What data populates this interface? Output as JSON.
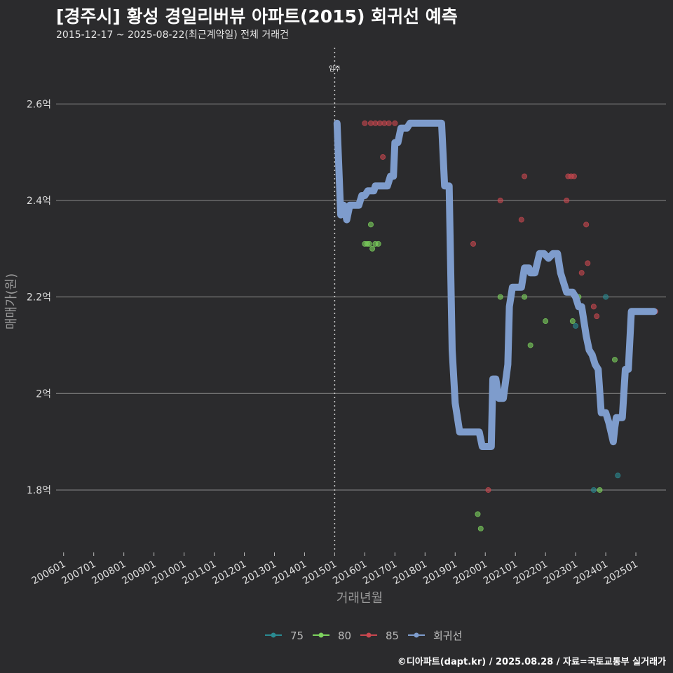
{
  "header": {
    "title": "[경주시] 황성 경일리버뷰 아파트(2015) 회귀선 예측",
    "subtitle": "2015-12-17 ~ 2025-08-22(최근계약일) 전체 거래건"
  },
  "footer": {
    "credit": "©디아파트(dapt.kr) / 2025.08.28 / 자료=국토교통부 실거래가"
  },
  "colors": {
    "background": "#2b2b2d",
    "s75": "#2a8a91",
    "s80": "#7dd35e",
    "s85": "#c9474f",
    "regression": "#7e9ccc",
    "grid": "#8a8a8a"
  },
  "chart_data": {
    "type": "scatter",
    "title": "[경주시] 황성 경일리버뷰 아파트(2015) 회귀선 예측",
    "xlabel": "거래년월",
    "ylabel": "매매가(원)",
    "x_ticks": [
      "200601",
      "200701",
      "200801",
      "200901",
      "201001",
      "201101",
      "201201",
      "201301",
      "201401",
      "201501",
      "201601",
      "201701",
      "201801",
      "201901",
      "202001",
      "202101",
      "202201",
      "202301",
      "202401",
      "202501"
    ],
    "x_range": [
      2005.75,
      2026.0
    ],
    "y_ticks": [
      1.8,
      2.0,
      2.2,
      2.4,
      2.6
    ],
    "y_tick_labels": [
      "1.8억",
      "2억",
      "2.2억",
      "2.4억",
      "2.6억"
    ],
    "ylim": [
      1.675,
      2.75
    ],
    "vline": {
      "x": 2015.0,
      "label": "입주"
    },
    "legend": [
      "75",
      "80",
      "85",
      "회귀선"
    ],
    "legend_position": "bottom",
    "series": [
      {
        "name": "75",
        "points": [
          [
            2024.0,
            2.2
          ],
          [
            2023.0,
            2.14
          ],
          [
            2023.6,
            1.8
          ],
          [
            2024.4,
            1.83
          ]
        ]
      },
      {
        "name": "80",
        "points": [
          [
            2016.0,
            2.31
          ],
          [
            2016.08,
            2.31
          ],
          [
            2016.15,
            2.31
          ],
          [
            2016.2,
            2.35
          ],
          [
            2016.25,
            2.3
          ],
          [
            2016.35,
            2.31
          ],
          [
            2016.45,
            2.31
          ],
          [
            2019.75,
            1.75
          ],
          [
            2019.85,
            1.72
          ],
          [
            2020.5,
            2.2
          ],
          [
            2021.3,
            2.2
          ],
          [
            2021.5,
            2.1
          ],
          [
            2022.0,
            2.15
          ],
          [
            2022.9,
            2.15
          ],
          [
            2023.1,
            2.2
          ],
          [
            2023.8,
            1.8
          ],
          [
            2024.3,
            2.07
          ]
        ]
      },
      {
        "name": "85",
        "points": [
          [
            2016.0,
            2.56
          ],
          [
            2016.2,
            2.56
          ],
          [
            2016.35,
            2.56
          ],
          [
            2016.5,
            2.56
          ],
          [
            2016.65,
            2.56
          ],
          [
            2016.8,
            2.56
          ],
          [
            2017.0,
            2.56
          ],
          [
            2016.6,
            2.49
          ],
          [
            2019.6,
            2.31
          ],
          [
            2020.1,
            1.8
          ],
          [
            2020.5,
            2.4
          ],
          [
            2021.2,
            2.36
          ],
          [
            2021.3,
            2.45
          ],
          [
            2022.7,
            2.4
          ],
          [
            2022.75,
            2.45
          ],
          [
            2022.85,
            2.45
          ],
          [
            2022.95,
            2.45
          ],
          [
            2023.2,
            2.25
          ],
          [
            2023.35,
            2.35
          ],
          [
            2023.4,
            2.27
          ],
          [
            2023.6,
            2.18
          ],
          [
            2023.7,
            2.16
          ],
          [
            2025.6,
            2.17
          ],
          [
            2025.65,
            2.17
          ]
        ]
      }
    ],
    "regression": [
      [
        2015.08,
        2.56
      ],
      [
        2015.2,
        2.37
      ],
      [
        2015.3,
        2.39
      ],
      [
        2015.4,
        2.36
      ],
      [
        2015.5,
        2.39
      ],
      [
        2015.8,
        2.39
      ],
      [
        2015.9,
        2.41
      ],
      [
        2016.0,
        2.41
      ],
      [
        2016.1,
        2.42
      ],
      [
        2016.3,
        2.42
      ],
      [
        2016.35,
        2.43
      ],
      [
        2016.75,
        2.43
      ],
      [
        2016.85,
        2.45
      ],
      [
        2016.95,
        2.45
      ],
      [
        2017.0,
        2.52
      ],
      [
        2017.1,
        2.52
      ],
      [
        2017.2,
        2.55
      ],
      [
        2017.4,
        2.55
      ],
      [
        2017.5,
        2.56
      ],
      [
        2018.55,
        2.56
      ],
      [
        2018.65,
        2.43
      ],
      [
        2018.8,
        2.43
      ],
      [
        2018.9,
        2.09
      ],
      [
        2019.0,
        1.98
      ],
      [
        2019.15,
        1.92
      ],
      [
        2019.8,
        1.92
      ],
      [
        2019.9,
        1.89
      ],
      [
        2020.2,
        1.89
      ],
      [
        2020.25,
        2.03
      ],
      [
        2020.35,
        2.03
      ],
      [
        2020.45,
        1.99
      ],
      [
        2020.6,
        1.99
      ],
      [
        2020.75,
        2.06
      ],
      [
        2020.8,
        2.18
      ],
      [
        2020.9,
        2.22
      ],
      [
        2021.2,
        2.22
      ],
      [
        2021.3,
        2.26
      ],
      [
        2021.45,
        2.26
      ],
      [
        2021.5,
        2.25
      ],
      [
        2021.65,
        2.25
      ],
      [
        2021.8,
        2.29
      ],
      [
        2021.95,
        2.29
      ],
      [
        2022.1,
        2.28
      ],
      [
        2022.25,
        2.29
      ],
      [
        2022.4,
        2.29
      ],
      [
        2022.5,
        2.25
      ],
      [
        2022.6,
        2.23
      ],
      [
        2022.7,
        2.21
      ],
      [
        2022.9,
        2.21
      ],
      [
        2023.0,
        2.2
      ],
      [
        2023.1,
        2.18
      ],
      [
        2023.2,
        2.18
      ],
      [
        2023.35,
        2.12
      ],
      [
        2023.45,
        2.09
      ],
      [
        2023.55,
        2.08
      ],
      [
        2023.65,
        2.06
      ],
      [
        2023.75,
        2.05
      ],
      [
        2023.85,
        1.96
      ],
      [
        2024.0,
        1.96
      ],
      [
        2024.1,
        1.94
      ],
      [
        2024.25,
        1.9
      ],
      [
        2024.3,
        1.93
      ],
      [
        2024.35,
        1.95
      ],
      [
        2024.55,
        1.95
      ],
      [
        2024.65,
        2.05
      ],
      [
        2024.75,
        2.05
      ],
      [
        2024.85,
        2.17
      ],
      [
        2025.6,
        2.17
      ]
    ]
  }
}
